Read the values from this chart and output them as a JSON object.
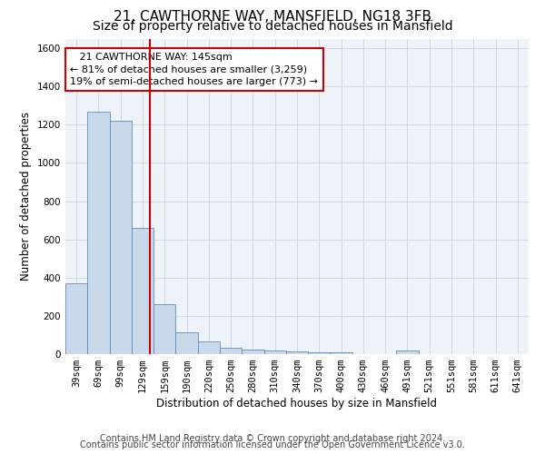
{
  "title1": "21, CAWTHORNE WAY, MANSFIELD, NG18 3FB",
  "title2": "Size of property relative to detached houses in Mansfield",
  "xlabel": "Distribution of detached houses by size in Mansfield",
  "ylabel": "Number of detached properties",
  "categories": [
    "39sqm",
    "69sqm",
    "99sqm",
    "129sqm",
    "159sqm",
    "190sqm",
    "220sqm",
    "250sqm",
    "280sqm",
    "310sqm",
    "340sqm",
    "370sqm",
    "400sqm",
    "430sqm",
    "460sqm",
    "491sqm",
    "521sqm",
    "551sqm",
    "581sqm",
    "611sqm",
    "641sqm"
  ],
  "values": [
    370,
    1270,
    1220,
    660,
    260,
    115,
    65,
    35,
    25,
    18,
    12,
    8,
    8,
    0,
    0,
    18,
    0,
    0,
    0,
    0,
    0
  ],
  "bar_color": "#c9d9ec",
  "bar_edge_color": "#5b8db8",
  "red_line_index": 3.33,
  "annotation_line1": "   21 CAWTHORNE WAY: 145sqm",
  "annotation_line2": "← 81% of detached houses are smaller (3,259)",
  "annotation_line3": "19% of semi-detached houses are larger (773) →",
  "annotation_box_color": "#ffffff",
  "annotation_box_edge_color": "#cc0000",
  "footer1": "Contains HM Land Registry data © Crown copyright and database right 2024.",
  "footer2": "Contains public sector information licensed under the Open Government Licence v3.0.",
  "ylim": [
    0,
    1650
  ],
  "yticks": [
    0,
    200,
    400,
    600,
    800,
    1000,
    1200,
    1400,
    1600
  ],
  "grid_color": "#d0d8e8",
  "bg_color": "#eef2f9",
  "title1_fontsize": 11,
  "title2_fontsize": 10,
  "axis_label_fontsize": 8.5,
  "tick_fontsize": 7.5,
  "annotation_fontsize": 8,
  "footer_fontsize": 7
}
